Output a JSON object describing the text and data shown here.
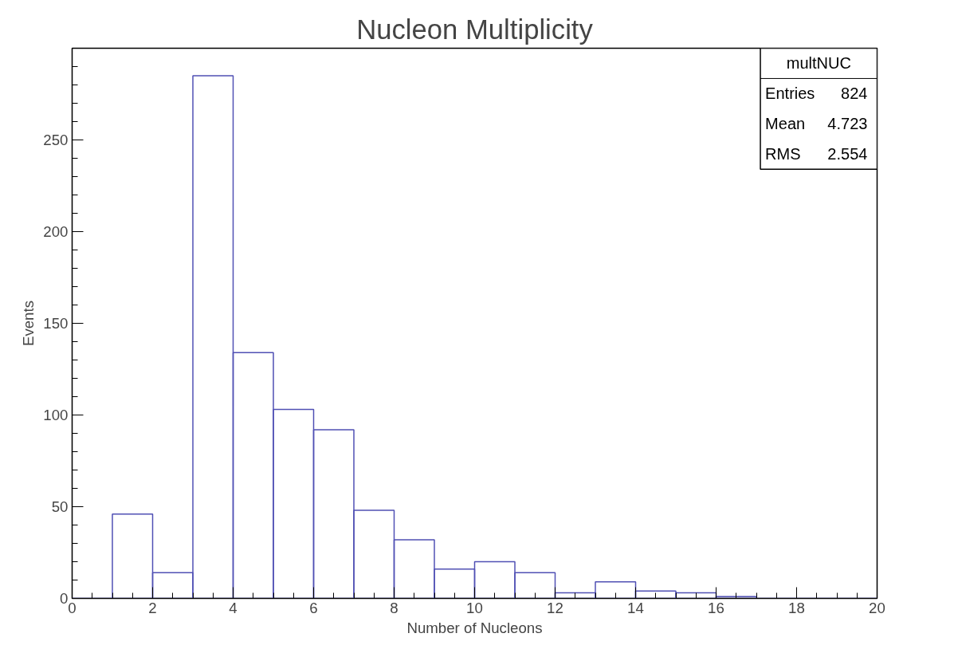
{
  "chart_data": {
    "type": "histogram",
    "title": "Nucleon Multiplicity",
    "xlabel": "Number of Nucleons",
    "ylabel": "Events",
    "bins": [
      0,
      1,
      2,
      3,
      4,
      5,
      6,
      7,
      8,
      9,
      10,
      11,
      12,
      13,
      14,
      15,
      16,
      17,
      18,
      19,
      20
    ],
    "values": [
      0,
      46,
      14,
      285,
      134,
      103,
      92,
      48,
      32,
      16,
      20,
      14,
      3,
      9,
      4,
      3,
      1,
      0,
      0,
      0
    ],
    "color": "#5050b4",
    "xlim": [
      0,
      20
    ],
    "xticks": [
      0,
      2,
      4,
      6,
      8,
      10,
      12,
      14,
      16,
      18,
      20
    ],
    "ylim": [
      0,
      300
    ],
    "yticks": [
      0,
      50,
      100,
      150,
      200,
      250
    ],
    "grid": false,
    "annotations": [
      "multNUC",
      "Entries 824",
      "Mean 4.723",
      "RMS 2.554"
    ]
  }
}
